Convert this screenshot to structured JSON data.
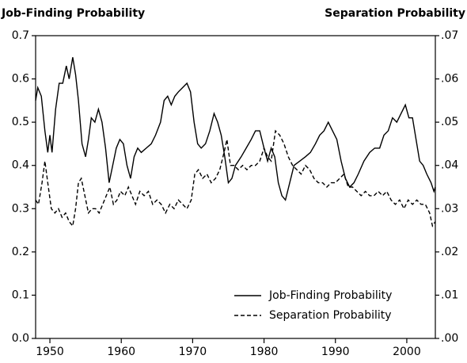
{
  "chart_data": {
    "type": "line",
    "y_label": "Job-Finding Probability",
    "y2_label": "Separation Probability",
    "xlim": [
      1948,
      2004
    ],
    "xticks": [
      1950,
      1960,
      1970,
      1980,
      1990,
      2000
    ],
    "ylim": [
      0,
      0.7
    ],
    "yticks": [
      {
        "value": 0,
        "label": "0.0"
      },
      0.1,
      0.2,
      0.3,
      0.4,
      0.5,
      0.6,
      0.7
    ],
    "y2lim": [
      0,
      0.07
    ],
    "y2ticks": [
      {
        "value": 0,
        "label": ".00"
      },
      {
        "value": 0.01,
        "label": ".01"
      },
      {
        "value": 0.02,
        "label": ".02"
      },
      {
        "value": 0.03,
        "label": ".03"
      },
      {
        "value": 0.04,
        "label": ".04"
      },
      {
        "value": 0.05,
        "label": ".05"
      },
      {
        "value": 0.06,
        "label": ".06"
      },
      {
        "value": 0.07,
        "label": ".07"
      }
    ],
    "legend": "lower right",
    "series": [
      {
        "name": "Job-Finding Probability",
        "color": "#000000",
        "dash": "solid",
        "axis": "y",
        "x": [
          1948.0,
          1948.3,
          1948.8,
          1949.3,
          1949.7,
          1950.0,
          1950.3,
          1950.8,
          1951.3,
          1951.8,
          1952.3,
          1952.7,
          1953.2,
          1953.6,
          1954.0,
          1954.5,
          1955.0,
          1955.4,
          1955.8,
          1956.3,
          1956.8,
          1957.3,
          1957.8,
          1958.3,
          1958.8,
          1959.3,
          1959.8,
          1960.3,
          1960.8,
          1961.3,
          1961.8,
          1962.3,
          1962.8,
          1963.5,
          1964.2,
          1964.8,
          1965.5,
          1966.0,
          1966.5,
          1967.0,
          1967.5,
          1968.0,
          1968.6,
          1969.2,
          1969.7,
          1970.2,
          1970.7,
          1971.2,
          1971.8,
          1972.4,
          1973.0,
          1973.5,
          1974.0,
          1974.5,
          1975.0,
          1975.5,
          1976.0,
          1976.8,
          1977.5,
          1978.2,
          1978.8,
          1979.4,
          1980.0,
          1980.5,
          1981.0,
          1981.5,
          1982.0,
          1982.5,
          1983.0,
          1983.6,
          1984.2,
          1985.0,
          1985.8,
          1986.5,
          1987.2,
          1987.8,
          1988.4,
          1989.0,
          1989.6,
          1990.2,
          1990.8,
          1991.4,
          1992.0,
          1992.6,
          1993.2,
          1994.0,
          1994.8,
          1995.5,
          1996.2,
          1996.8,
          1997.4,
          1998.0,
          1998.6,
          1999.2,
          1999.8,
          2000.3,
          2000.8,
          2001.3,
          2001.8,
          2002.3,
          2002.8,
          2003.4,
          2003.8,
          2004.0
        ],
        "values": [
          0.55,
          0.58,
          0.56,
          0.48,
          0.43,
          0.47,
          0.43,
          0.53,
          0.59,
          0.59,
          0.63,
          0.6,
          0.65,
          0.61,
          0.55,
          0.45,
          0.42,
          0.46,
          0.51,
          0.5,
          0.53,
          0.5,
          0.44,
          0.36,
          0.4,
          0.44,
          0.46,
          0.45,
          0.4,
          0.37,
          0.42,
          0.44,
          0.43,
          0.44,
          0.45,
          0.47,
          0.5,
          0.55,
          0.56,
          0.54,
          0.56,
          0.57,
          0.58,
          0.59,
          0.57,
          0.5,
          0.45,
          0.44,
          0.45,
          0.48,
          0.52,
          0.5,
          0.47,
          0.42,
          0.36,
          0.37,
          0.4,
          0.42,
          0.44,
          0.46,
          0.48,
          0.48,
          0.44,
          0.41,
          0.44,
          0.42,
          0.36,
          0.33,
          0.32,
          0.36,
          0.4,
          0.41,
          0.42,
          0.43,
          0.45,
          0.47,
          0.48,
          0.5,
          0.48,
          0.46,
          0.41,
          0.37,
          0.35,
          0.36,
          0.38,
          0.41,
          0.43,
          0.44,
          0.44,
          0.47,
          0.48,
          0.51,
          0.5,
          0.52,
          0.54,
          0.51,
          0.51,
          0.46,
          0.41,
          0.4,
          0.38,
          0.36,
          0.34,
          0.35
        ]
      },
      {
        "name": "Separation Probability",
        "color": "#000000",
        "dash": "dashed",
        "axis": "y2",
        "x": [
          1948.0,
          1948.4,
          1948.9,
          1949.3,
          1949.7,
          1950.2,
          1950.7,
          1951.2,
          1951.7,
          1952.2,
          1952.7,
          1953.2,
          1953.6,
          1954.0,
          1954.4,
          1954.9,
          1955.4,
          1955.9,
          1956.4,
          1956.9,
          1957.4,
          1957.9,
          1958.4,
          1958.9,
          1959.4,
          1959.9,
          1960.5,
          1961.0,
          1961.5,
          1962.0,
          1962.6,
          1963.2,
          1963.8,
          1964.4,
          1965.0,
          1965.6,
          1966.2,
          1966.8,
          1967.4,
          1968.0,
          1968.6,
          1969.2,
          1969.8,
          1970.3,
          1970.8,
          1971.4,
          1972.0,
          1972.6,
          1973.2,
          1973.8,
          1974.4,
          1974.8,
          1975.3,
          1975.8,
          1976.4,
          1977.0,
          1977.6,
          1978.2,
          1978.8,
          1979.4,
          1980.0,
          1980.5,
          1981.0,
          1981.6,
          1982.2,
          1982.8,
          1983.4,
          1984.0,
          1984.6,
          1985.2,
          1985.8,
          1986.4,
          1987.0,
          1987.6,
          1988.2,
          1988.8,
          1989.4,
          1990.0,
          1990.6,
          1991.2,
          1991.8,
          1992.4,
          1993.0,
          1993.6,
          1994.2,
          1994.8,
          1995.4,
          1996.0,
          1996.6,
          1997.2,
          1997.8,
          1998.4,
          1999.0,
          1999.6,
          2000.2,
          2000.8,
          2001.4,
          2002.0,
          2002.6,
          2003.2,
          2003.6,
          2004.0
        ],
        "values": [
          0.032,
          0.031,
          0.036,
          0.041,
          0.036,
          0.03,
          0.029,
          0.03,
          0.028,
          0.029,
          0.027,
          0.026,
          0.03,
          0.036,
          0.037,
          0.033,
          0.029,
          0.03,
          0.03,
          0.029,
          0.031,
          0.033,
          0.035,
          0.031,
          0.032,
          0.034,
          0.033,
          0.035,
          0.033,
          0.031,
          0.034,
          0.033,
          0.034,
          0.031,
          0.032,
          0.031,
          0.029,
          0.031,
          0.03,
          0.032,
          0.031,
          0.03,
          0.032,
          0.038,
          0.039,
          0.037,
          0.038,
          0.036,
          0.037,
          0.039,
          0.043,
          0.046,
          0.04,
          0.04,
          0.039,
          0.04,
          0.039,
          0.04,
          0.04,
          0.041,
          0.044,
          0.042,
          0.041,
          0.048,
          0.047,
          0.045,
          0.042,
          0.04,
          0.039,
          0.038,
          0.04,
          0.039,
          0.037,
          0.036,
          0.036,
          0.035,
          0.036,
          0.036,
          0.037,
          0.038,
          0.035,
          0.035,
          0.034,
          0.033,
          0.034,
          0.033,
          0.033,
          0.034,
          0.033,
          0.034,
          0.032,
          0.031,
          0.032,
          0.03,
          0.032,
          0.031,
          0.032,
          0.031,
          0.031,
          0.029,
          0.026,
          0.027
        ]
      }
    ]
  }
}
